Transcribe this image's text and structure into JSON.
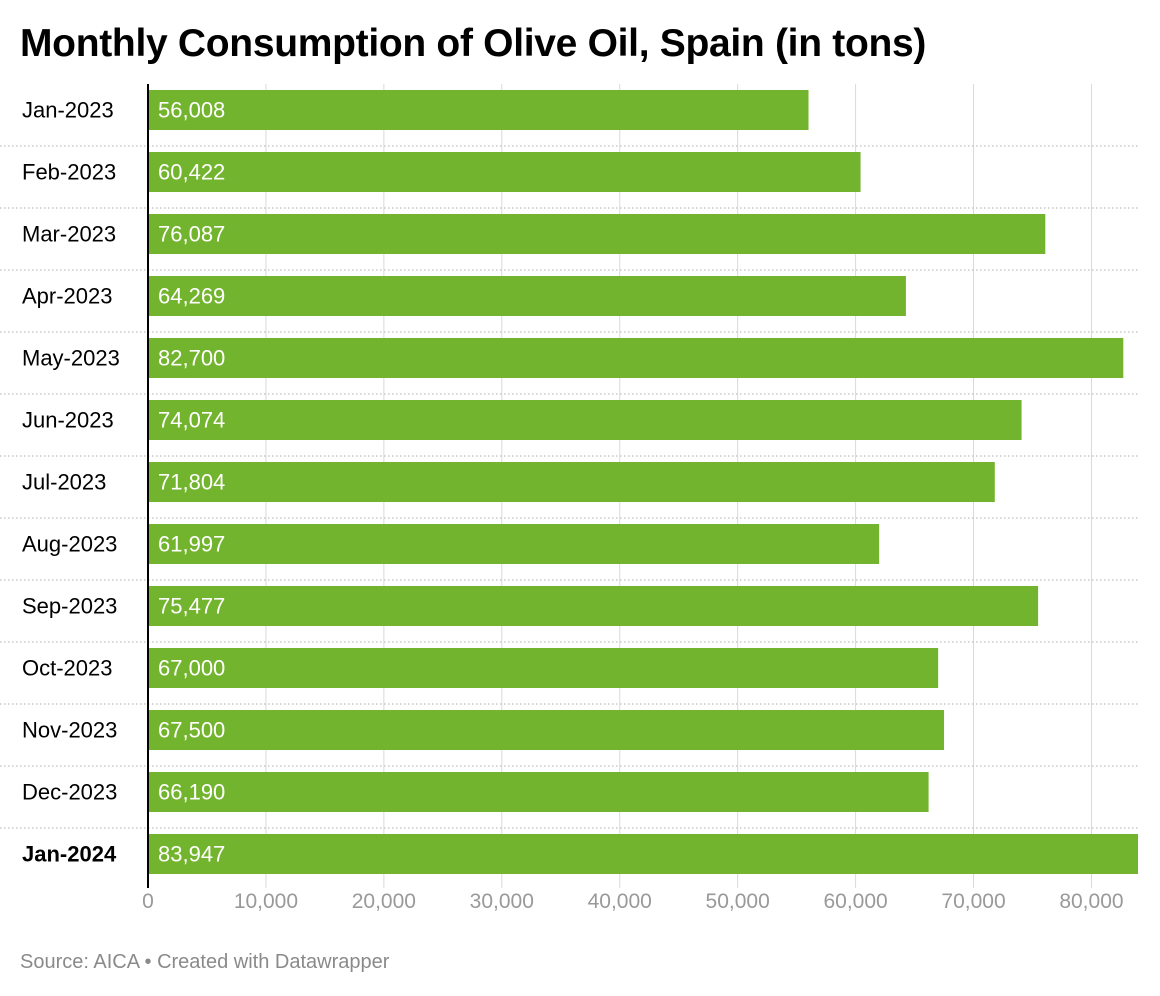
{
  "colors": {
    "bar": "#73b42e",
    "grid": "#d9d9d9",
    "axis_text": "#999999",
    "footer_text": "#8a8a8a"
  },
  "footer": {
    "source": "Source: AICA • Created with Datawrapper"
  },
  "chart_data": {
    "type": "bar",
    "orientation": "horizontal",
    "title": "Monthly Consumption of Olive Oil, Spain (in tons)",
    "categories": [
      "Jan-2023",
      "Feb-2023",
      "Mar-2023",
      "Apr-2023",
      "May-2023",
      "Jun-2023",
      "Jul-2023",
      "Aug-2023",
      "Sep-2023",
      "Oct-2023",
      "Nov-2023",
      "Dec-2023",
      "Jan-2024"
    ],
    "values": [
      56008,
      60422,
      76087,
      64269,
      82700,
      74074,
      71804,
      61997,
      75477,
      67000,
      67500,
      66190,
      83947
    ],
    "value_labels": [
      "56,008",
      "60,422",
      "76,087",
      "64,269",
      "82,700",
      "74,074",
      "71,804",
      "61,997",
      "75,477",
      "67,000",
      "67,500",
      "66,190",
      "83,947"
    ],
    "highlighted_category": "Jan-2024",
    "x_ticks": [
      0,
      10000,
      20000,
      30000,
      40000,
      50000,
      60000,
      70000,
      80000
    ],
    "x_tick_labels": [
      "0",
      "10,000",
      "20,000",
      "30,000",
      "40,000",
      "50,000",
      "60,000",
      "70,000",
      "80,000"
    ],
    "xlim": [
      0,
      83947
    ],
    "xlabel": "",
    "ylabel": "",
    "grid": true,
    "legend": "none"
  }
}
